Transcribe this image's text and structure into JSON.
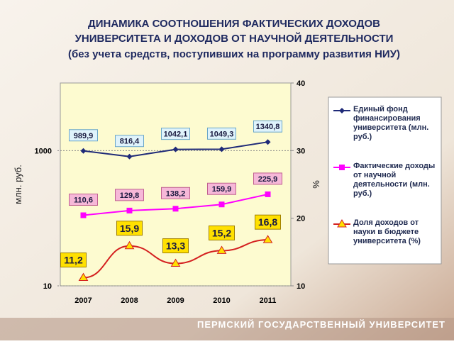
{
  "chart_data": {
    "type": "line",
    "title": [
      "ДИНАМИКА СООТНОШЕНИЯ ФАКТИЧЕСКИХ ДОХОДОВ",
      "УНИВЕРСИТЕТА И ДОХОДОВ ОТ НАУЧНОЙ ДЕЯТЕЛЬНОСТИ"
    ],
    "subtitle": "(без учета средств, поступивших на программу развития НИУ)",
    "y_label": "млн. руб.",
    "y2_label": "%",
    "footer": "ПЕРМСКИЙ ГОСУДАРСТВЕННЫЙ УНИВЕРСИТЕТ",
    "categories": [
      "2007",
      "2008",
      "2009",
      "2010",
      "2011"
    ],
    "ylim": [
      10,
      10000
    ],
    "yticks": [
      10,
      1000
    ],
    "log_y": true,
    "y2lim": [
      10,
      40
    ],
    "y2ticks": [
      10,
      20,
      30,
      40
    ],
    "series": [
      {
        "name": "Единый фонд финансирования университета (млн. руб.)",
        "color": "#1f2a78",
        "marker": "diamond",
        "label_fill": "#dff3fb",
        "label_stroke": "#6aa6c8",
        "values": [
          989.9,
          816.4,
          1042.1,
          1049.3,
          1340.8
        ],
        "value_labels": [
          "989,9",
          "816,4",
          "1042,1",
          "1049,3",
          "1340,8"
        ]
      },
      {
        "name": "Фактические доходы от научной деятельности (млн. руб.)",
        "color": "#ff00ff",
        "marker": "square",
        "label_fill": "#f6b8d8",
        "label_stroke": "#c06090",
        "values": [
          110.6,
          129.8,
          138.2,
          159.9,
          225.9
        ],
        "value_labels": [
          "110,6",
          "129,8",
          "138,2",
          "159,9",
          "225,9"
        ]
      },
      {
        "name": "Доля доходов от науки в бюджете университета (%)",
        "color": "#d42020",
        "marker": "triangle",
        "marker_fill": "#ffe000",
        "label_fill": "#ffe000",
        "label_stroke": "#a08000",
        "axis": "y2",
        "values": [
          11.2,
          15.9,
          13.3,
          15.2,
          16.8
        ],
        "value_labels": [
          "11,2",
          "15,9",
          "13,3",
          "15,2",
          "16,8"
        ]
      }
    ],
    "legend": "right"
  }
}
